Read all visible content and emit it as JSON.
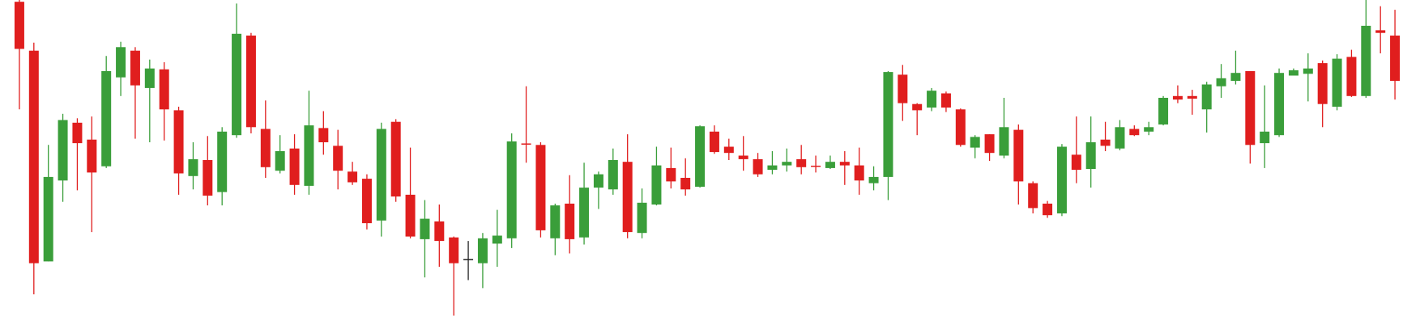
{
  "chart_data": {
    "type": "candlestick",
    "up_color": "#3a9e3a",
    "down_color": "#e01e1e",
    "doji_color": "#222222",
    "ylim": [
      0,
      370
    ],
    "open": [
      368,
      313,
      76,
      167,
      232,
      213,
      183,
      283,
      313,
      271,
      292,
      246,
      172,
      190,
      154,
      218,
      330,
      225,
      178,
      203,
      161,
      226,
      206,
      177,
      169,
      122,
      233,
      151,
      101,
      121,
      103,
      78,
      74,
      96,
      102,
      208,
      207,
      102,
      141,
      103,
      159,
      157,
      188,
      108,
      140,
      181,
      170,
      160,
      222,
      205,
      195,
      191,
      179,
      184,
      191,
      183,
      181,
      188,
      184,
      164,
      171,
      286,
      253,
      249,
      265,
      247,
      204,
      219,
      195,
      224,
      164,
      141,
      130,
      196,
      180,
      213,
      203,
      225,
      222,
      230,
      262,
      262,
      247,
      273,
      279,
      290,
      209,
      218,
      285,
      287,
      299,
      250,
      306,
      262,
      336,
      330
    ],
    "high": [
      370,
      322,
      207,
      242,
      237,
      239,
      307,
      323,
      317,
      303,
      300,
      250,
      210,
      217,
      227,
      366,
      333,
      257,
      218,
      219,
      268,
      245,
      224,
      188,
      174,
      232,
      236,
      204,
      145,
      140,
      104,
      99,
      108,
      134,
      220,
      273,
      210,
      141,
      173,
      187,
      177,
      203,
      219,
      158,
      205,
      204,
      192,
      229,
      229,
      214,
      217,
      198,
      200,
      203,
      207,
      195,
      195,
      200,
      204,
      183,
      290,
      297,
      254,
      271,
      267,
      248,
      218,
      219,
      260,
      230,
      166,
      144,
      208,
      239,
      239,
      233,
      235,
      229,
      233,
      262,
      274,
      269,
      278,
      298,
      313,
      290,
      274,
      293,
      293,
      310,
      302,
      309,
      314,
      370,
      363,
      359
    ],
    "low": [
      247,
      39,
      76,
      143,
      156,
      109,
      181,
      262,
      214,
      210,
      212,
      151,
      157,
      139,
      139,
      215,
      220,
      170,
      175,
      151,
      151,
      196,
      157,
      162,
      112,
      104,
      143,
      102,
      58,
      70,
      15,
      55,
      46,
      70,
      91,
      187,
      103,
      83,
      85,
      95,
      135,
      151,
      102,
      102,
      139,
      158,
      150,
      159,
      197,
      190,
      178,
      171,
      174,
      177,
      174,
      176,
      180,
      162,
      151,
      156,
      145,
      234,
      218,
      245,
      244,
      205,
      192,
      189,
      192,
      140,
      130,
      125,
      127,
      164,
      159,
      200,
      201,
      217,
      218,
      229,
      254,
      241,
      221,
      260,
      275,
      186,
      181,
      216,
      285,
      256,
      227,
      246,
      261,
      260,
      310,
      258
    ],
    "close": [
      315,
      74,
      171,
      235,
      209,
      176,
      290,
      317,
      274,
      293,
      247,
      175,
      191,
      150,
      222,
      332,
      227,
      182,
      200,
      162,
      229,
      210,
      178,
      165,
      119,
      225,
      149,
      104,
      124,
      99,
      74,
      78,
      102,
      105,
      211,
      207,
      111,
      139,
      101,
      159,
      174,
      190,
      109,
      142,
      184,
      166,
      157,
      228,
      199,
      198,
      191,
      174,
      184,
      188,
      182,
      182,
      188,
      184,
      167,
      171,
      289,
      254,
      246,
      268,
      249,
      207,
      216,
      198,
      227,
      166,
      136,
      128,
      205,
      179,
      210,
      206,
      227,
      218,
      227,
      260,
      258,
      259,
      275,
      282,
      288,
      207,
      222,
      288,
      291,
      293,
      253,
      304,
      262,
      341,
      333,
      279
    ]
  }
}
